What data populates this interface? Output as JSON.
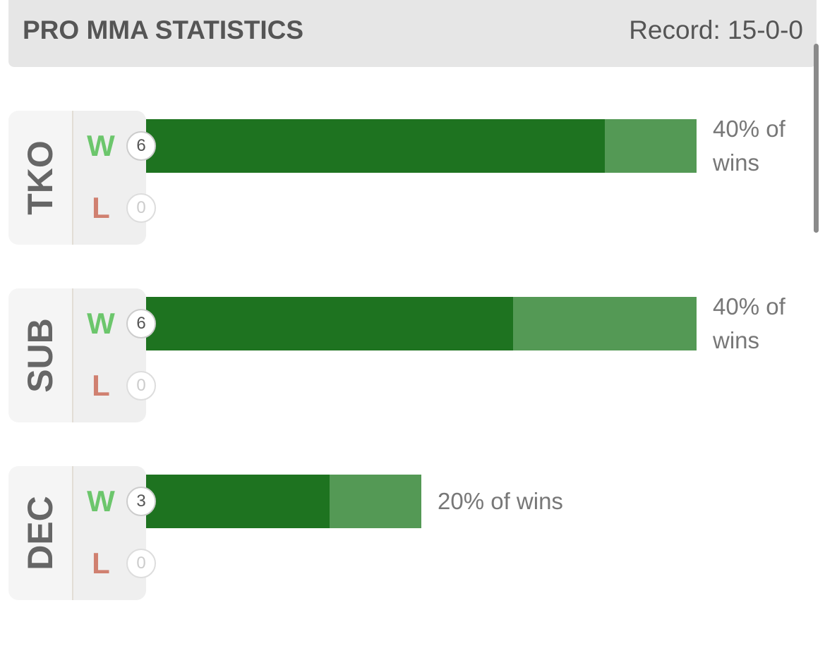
{
  "header": {
    "title": "PRO MMA STATISTICS",
    "record": "Record: 15-0-0"
  },
  "rows": [
    {
      "label": "TKO",
      "win_letter": "W",
      "wins": 6,
      "loss_letter": "L",
      "losses": 0,
      "bar_segments": [
        5,
        1
      ],
      "percent_label": "40% of wins"
    },
    {
      "label": "SUB",
      "win_letter": "W",
      "wins": 6,
      "loss_letter": "L",
      "losses": 0,
      "bar_segments": [
        4,
        2
      ],
      "percent_label": "40% of wins"
    },
    {
      "label": "DEC",
      "win_letter": "W",
      "wins": 3,
      "loss_letter": "L",
      "losses": 0,
      "bar_segments": [
        2,
        1
      ],
      "percent_label": "20% of wins"
    }
  ]
}
